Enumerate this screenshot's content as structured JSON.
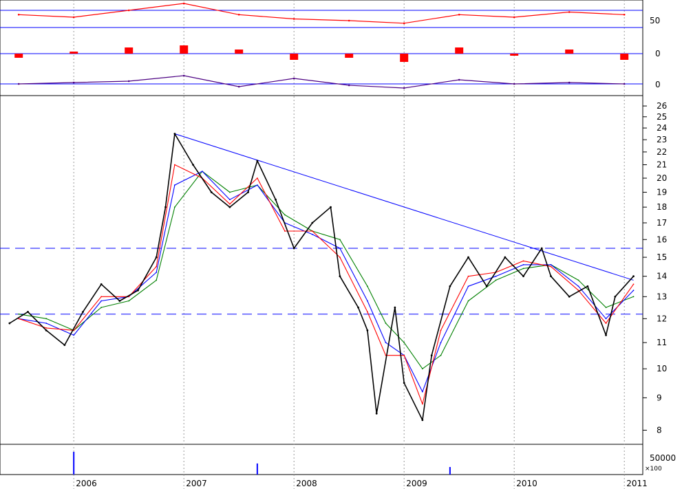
{
  "chart_data": [
    {
      "type": "line",
      "panel": "oscillator-1",
      "color": "#ff0000",
      "y_ticks": [
        "50"
      ],
      "reference_lines_color": "#0000ff",
      "x": [
        "2005-07",
        "2006-01",
        "2006-07",
        "2007-01",
        "2007-07",
        "2008-01",
        "2008-07",
        "2009-01",
        "2009-07",
        "2010-01",
        "2010-07",
        "2011-01"
      ],
      "values": [
        55,
        52,
        60,
        68,
        55,
        50,
        48,
        45,
        55,
        52,
        58,
        55
      ]
    },
    {
      "type": "bar",
      "panel": "histogram",
      "color": "#ff0000",
      "y_ticks": [
        "0"
      ],
      "x": [
        "2005-07",
        "2006-01",
        "2006-07",
        "2007-01",
        "2007-07",
        "2008-01",
        "2008-07",
        "2009-01",
        "2009-07",
        "2010-01",
        "2010-07",
        "2011-01"
      ],
      "values": [
        -2,
        1,
        3,
        4,
        2,
        -3,
        -2,
        -4,
        3,
        -1,
        2,
        -3
      ]
    },
    {
      "type": "line",
      "panel": "oscillator-2",
      "color": "#4b0082",
      "y_ticks": [
        "0"
      ],
      "x": [
        "2005-07",
        "2006-01",
        "2006-07",
        "2007-01",
        "2007-07",
        "2008-01",
        "2008-07",
        "2009-01",
        "2009-07",
        "2010-01",
        "2010-07",
        "2011-01"
      ],
      "values": [
        0,
        1,
        2,
        6,
        -2,
        4,
        -1,
        -3,
        3,
        0,
        1,
        0
      ]
    },
    {
      "type": "line",
      "panel": "price",
      "scale": "log",
      "y_ticks": [
        "8",
        "9",
        "10",
        "11",
        "12",
        "13",
        "14",
        "15",
        "16",
        "17",
        "18",
        "19",
        "20",
        "21",
        "22",
        "23",
        "24",
        "25",
        "26"
      ],
      "ylim": [
        7.6,
        27
      ],
      "x_ticks": [
        "2006",
        "2007",
        "2008",
        "2009",
        "2010",
        "2011"
      ],
      "series": [
        {
          "color": "#000000",
          "x": [
            "2005-06",
            "2005-08",
            "2005-10",
            "2005-12",
            "2006-02",
            "2006-04",
            "2006-06",
            "2006-08",
            "2006-10",
            "2006-11",
            "2006-12",
            "2007-02",
            "2007-04",
            "2007-06",
            "2007-08",
            "2007-09",
            "2007-11",
            "2008-01",
            "2008-03",
            "2008-05",
            "2008-06",
            "2008-08",
            "2008-09",
            "2008-10",
            "2008-12",
            "2009-01",
            "2009-03",
            "2009-04",
            "2009-06",
            "2009-08",
            "2009-10",
            "2009-12",
            "2010-02",
            "2010-04",
            "2010-05",
            "2010-07",
            "2010-09",
            "2010-11",
            "2010-12",
            "2011-02"
          ],
          "values": [
            11.8,
            12.3,
            11.5,
            10.9,
            12.3,
            13.6,
            12.8,
            13.3,
            15.0,
            18.0,
            23.5,
            21.0,
            19.0,
            18.0,
            19.0,
            21.3,
            18.5,
            15.5,
            17.0,
            18.0,
            14.0,
            12.5,
            11.5,
            8.5,
            12.5,
            9.5,
            8.3,
            10.5,
            13.5,
            15.0,
            13.5,
            15.0,
            14.0,
            15.5,
            14.0,
            13.0,
            13.5,
            11.3,
            13.0,
            14.0
          ]
        },
        {
          "color": "#ff0000",
          "x": [
            "2005-07",
            "2005-10",
            "2006-01",
            "2006-04",
            "2006-07",
            "2006-10",
            "2006-12",
            "2007-03",
            "2007-06",
            "2007-09",
            "2007-12",
            "2008-03",
            "2008-06",
            "2008-09",
            "2008-11",
            "2009-01",
            "2009-03",
            "2009-05",
            "2009-08",
            "2009-11",
            "2010-02",
            "2010-05",
            "2010-08",
            "2010-11",
            "2011-02"
          ],
          "values": [
            12.0,
            11.6,
            11.5,
            13.0,
            13.0,
            14.5,
            21.0,
            20.0,
            18.2,
            20.0,
            16.5,
            16.5,
            15.0,
            12.3,
            10.5,
            10.5,
            8.8,
            11.5,
            14.0,
            14.2,
            14.8,
            14.5,
            13.3,
            11.8,
            13.6
          ]
        },
        {
          "color": "#0000ff",
          "x": [
            "2005-07",
            "2005-10",
            "2006-01",
            "2006-04",
            "2006-07",
            "2006-10",
            "2006-12",
            "2007-03",
            "2007-06",
            "2007-09",
            "2007-12",
            "2008-03",
            "2008-06",
            "2008-09",
            "2008-11",
            "2009-01",
            "2009-03",
            "2009-05",
            "2009-08",
            "2009-11",
            "2010-02",
            "2010-05",
            "2010-08",
            "2010-11",
            "2011-02"
          ],
          "values": [
            12.0,
            11.8,
            11.3,
            12.8,
            13.0,
            14.2,
            19.5,
            20.5,
            18.5,
            19.5,
            17.0,
            16.3,
            15.5,
            12.8,
            11.0,
            10.5,
            9.2,
            11.0,
            13.5,
            14.0,
            14.6,
            14.6,
            13.5,
            12.0,
            13.3
          ]
        },
        {
          "color": "#008000",
          "x": [
            "2005-07",
            "2005-10",
            "2006-01",
            "2006-04",
            "2006-07",
            "2006-10",
            "2006-12",
            "2007-03",
            "2007-06",
            "2007-09",
            "2007-12",
            "2008-03",
            "2008-06",
            "2008-09",
            "2008-11",
            "2009-01",
            "2009-03",
            "2009-05",
            "2009-08",
            "2009-11",
            "2010-02",
            "2010-05",
            "2010-08",
            "2010-11",
            "2011-02"
          ],
          "values": [
            12.2,
            12.0,
            11.5,
            12.5,
            12.8,
            13.8,
            18.0,
            20.5,
            19.0,
            19.5,
            17.5,
            16.5,
            16.0,
            13.5,
            11.8,
            11.0,
            10.0,
            10.5,
            12.8,
            13.8,
            14.4,
            14.6,
            13.8,
            12.5,
            13.0
          ]
        }
      ],
      "trendline": {
        "color": "#0000ff",
        "x": [
          "2006-12",
          "2011-02"
        ],
        "values": [
          23.5,
          13.8
        ]
      },
      "reference_levels": {
        "color": "#0000ff",
        "style": "dashed",
        "values": [
          15.5,
          12.2
        ]
      }
    },
    {
      "type": "bar",
      "panel": "volume",
      "color": "#0000ff",
      "y_ticks": [
        "50000"
      ],
      "scale_note": "×100",
      "x": [
        "2006-01",
        "2007-09",
        "2009-06"
      ],
      "values": [
        45000,
        22000,
        15000
      ]
    }
  ]
}
